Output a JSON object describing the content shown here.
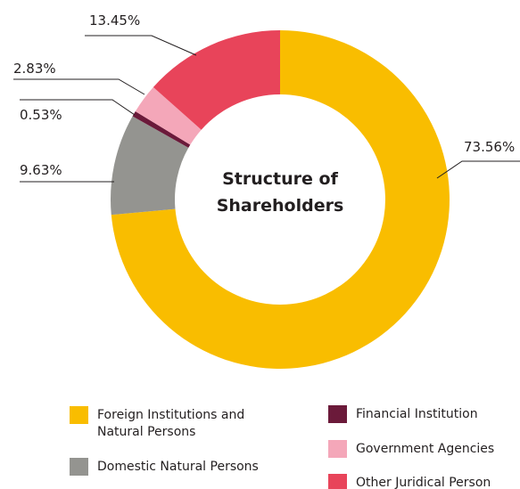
{
  "chart_data": {
    "type": "donut",
    "title": "Structure of Shareholders",
    "categories": [
      "Foreign Institutions and Natural Persons",
      "Domestic Natural Persons",
      "Financial Institution",
      "Government Agencies",
      "Other Juridical Person"
    ],
    "values": [
      73.56,
      9.63,
      0.53,
      2.83,
      13.45
    ],
    "value_labels": [
      "73.56%",
      "9.63%",
      "0.53%",
      "2.83%",
      "13.45%"
    ],
    "colors": [
      "#f9bd00",
      "#949490",
      "#6b1a3a",
      "#f4a7b9",
      "#e8445a"
    ]
  }
}
